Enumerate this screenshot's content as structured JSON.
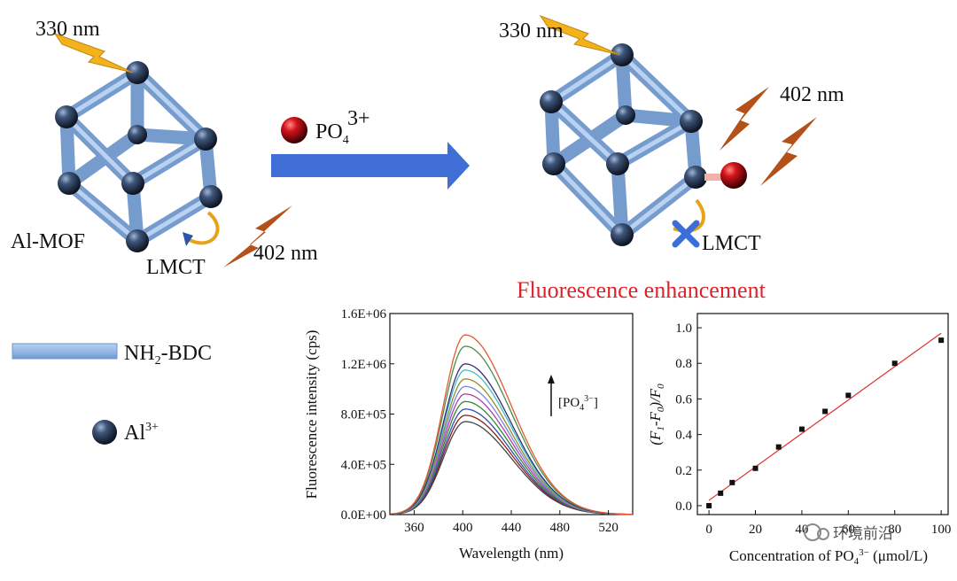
{
  "labels": {
    "wavelength_330_left": "330 nm",
    "wavelength_330_right": "330 nm",
    "wavelength_402_left": "402 nm",
    "wavelength_402_right": "402 nm",
    "al_mof": "Al-MOF",
    "lmct_left": "LMCT",
    "lmct_right": "LMCT",
    "analyte": "PO",
    "analyte_sub": "4",
    "analyte_sup": "3+",
    "headline": "Fluorescence enhancement",
    "legend_linker": "NH",
    "legend_linker_sub": "2",
    "legend_linker_tail": "-BDC",
    "legend_metal": "Al",
    "legend_metal_sup": "3+",
    "watermark": "环境前沿"
  },
  "colors": {
    "headline": "#e0202a",
    "arrow": "#3f6fd6",
    "rod": "#8fb4e3",
    "node": "#1f2a3d",
    "bolt_yellow": "#f2b21b",
    "bolt_brown": "#b4501a",
    "analyte_ball": "#c0141b",
    "fit_line": "#e03030"
  },
  "chart_data": [
    {
      "type": "line",
      "xlabel": "Wavelength (nm)",
      "ylabel": "Fluorescence intensity (cps)",
      "xlim": [
        340,
        540
      ],
      "ylim": [
        0,
        1600000
      ],
      "xticks": [
        "360",
        "400",
        "440",
        "480",
        "520"
      ],
      "yticks": [
        "0.0E+00",
        "4.0E+05",
        "8.0E+05",
        "1.2E+06",
        "1.6E+06"
      ],
      "annotation": "[PO4 3−]",
      "series": [
        {
          "peak": 740000,
          "color": "#444444"
        },
        {
          "peak": 790000,
          "color": "#8b1c1c"
        },
        {
          "peak": 840000,
          "color": "#3050b0"
        },
        {
          "peak": 900000,
          "color": "#2e8b2e"
        },
        {
          "peak": 960000,
          "color": "#b03cb0"
        },
        {
          "peak": 1020000,
          "color": "#7a86e0"
        },
        {
          "peak": 1080000,
          "color": "#8f8f2a"
        },
        {
          "peak": 1150000,
          "color": "#40c0c0"
        },
        {
          "peak": 1200000,
          "color": "#3a2a7a"
        },
        {
          "peak": 1340000,
          "color": "#4c8c4c"
        },
        {
          "peak": 1430000,
          "color": "#e05a30"
        }
      ]
    },
    {
      "type": "scatter",
      "xlabel": "Concentration of PO4 3− (μmol/L)",
      "ylabel": "(F1-F0)/F0",
      "xlim": [
        -5,
        103
      ],
      "ylim": [
        -0.05,
        1.08
      ],
      "xticks": [
        "0",
        "20",
        "40",
        "60",
        "80",
        "100"
      ],
      "yticks": [
        "0.0",
        "0.2",
        "0.4",
        "0.6",
        "0.8",
        "1.0"
      ],
      "x": [
        0,
        5,
        10,
        20,
        30,
        40,
        50,
        60,
        80,
        100
      ],
      "y": [
        0.0,
        0.07,
        0.13,
        0.21,
        0.33,
        0.43,
        0.53,
        0.62,
        0.8,
        0.93
      ],
      "fit": {
        "x": [
          0,
          100
        ],
        "y": [
          0.03,
          0.97
        ]
      }
    }
  ]
}
